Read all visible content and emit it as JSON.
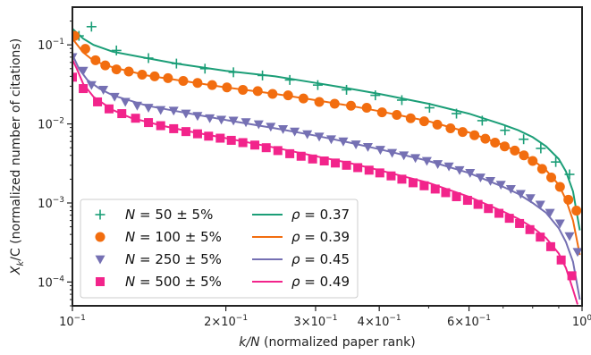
{
  "chart_data": {
    "type": "scatter",
    "title": "",
    "xlabel_var": "k/N",
    "xlabel_text": " (normalized paper rank)",
    "ylabel_var": "X_k/C",
    "ylabel_text": " (normalized number of citations)",
    "x_scale": "log",
    "y_scale": "log",
    "xlim": [
      0.1,
      1.0
    ],
    "ylim": [
      5e-05,
      0.3
    ],
    "grid": false,
    "legend_position": "lower-left",
    "x_ticks": [
      {
        "value": 0.1,
        "mant": "",
        "exp": "10",
        "sup": "−1"
      },
      {
        "value": 0.2,
        "mant": "2×",
        "exp": "10",
        "sup": "−1"
      },
      {
        "value": 0.3,
        "mant": "3×",
        "exp": "10",
        "sup": "−1"
      },
      {
        "value": 0.4,
        "mant": "4×",
        "exp": "10",
        "sup": "−1"
      },
      {
        "value": 0.6,
        "mant": "6×",
        "exp": "10",
        "sup": "−1"
      },
      {
        "value": 1.0,
        "mant": "",
        "exp": "10",
        "sup": "0"
      }
    ],
    "y_ticks": [
      {
        "value": 0.1,
        "exp": "10",
        "sup": "−1"
      },
      {
        "value": 0.01,
        "exp": "10",
        "sup": "−2"
      },
      {
        "value": 0.001,
        "exp": "10",
        "sup": "−3"
      },
      {
        "value": 0.0001,
        "exp": "10",
        "sup": "−4"
      }
    ],
    "scatter_series": [
      {
        "label_var": "N",
        "label_value": " = 50 ± 5%",
        "marker": "plus",
        "color": "#1b9e77",
        "points": [
          [
            0.103,
            0.13
          ],
          [
            0.109,
            0.17
          ],
          [
            0.122,
            0.085
          ],
          [
            0.141,
            0.068
          ],
          [
            0.16,
            0.058
          ],
          [
            0.182,
            0.05
          ],
          [
            0.207,
            0.045
          ],
          [
            0.236,
            0.041
          ],
          [
            0.267,
            0.036
          ],
          [
            0.303,
            0.031
          ],
          [
            0.345,
            0.027
          ],
          [
            0.393,
            0.023
          ],
          [
            0.443,
            0.02
          ],
          [
            0.502,
            0.016
          ],
          [
            0.567,
            0.0135
          ],
          [
            0.637,
            0.011
          ],
          [
            0.706,
            0.0083
          ],
          [
            0.768,
            0.0064
          ],
          [
            0.83,
            0.0049
          ],
          [
            0.888,
            0.0033
          ],
          [
            0.945,
            0.0023
          ]
        ]
      },
      {
        "label_var": "N",
        "label_value": " = 100 ± 5%",
        "marker": "circle",
        "color": "#f26d0f",
        "points": [
          [
            0.101,
            0.13
          ],
          [
            0.106,
            0.089
          ],
          [
            0.111,
            0.064
          ],
          [
            0.116,
            0.055
          ],
          [
            0.122,
            0.049
          ],
          [
            0.129,
            0.046
          ],
          [
            0.137,
            0.042
          ],
          [
            0.145,
            0.04
          ],
          [
            0.154,
            0.038
          ],
          [
            0.165,
            0.035
          ],
          [
            0.176,
            0.033
          ],
          [
            0.188,
            0.031
          ],
          [
            0.201,
            0.029
          ],
          [
            0.216,
            0.027
          ],
          [
            0.231,
            0.026
          ],
          [
            0.247,
            0.024
          ],
          [
            0.265,
            0.023
          ],
          [
            0.284,
            0.021
          ],
          [
            0.305,
            0.019
          ],
          [
            0.327,
            0.018
          ],
          [
            0.352,
            0.017
          ],
          [
            0.378,
            0.016
          ],
          [
            0.405,
            0.014
          ],
          [
            0.433,
            0.013
          ],
          [
            0.461,
            0.0118
          ],
          [
            0.49,
            0.0108
          ],
          [
            0.52,
            0.0098
          ],
          [
            0.552,
            0.0088
          ],
          [
            0.583,
            0.0079
          ],
          [
            0.615,
            0.0072
          ],
          [
            0.646,
            0.0065
          ],
          [
            0.675,
            0.0058
          ],
          [
            0.705,
            0.0052
          ],
          [
            0.738,
            0.0046
          ],
          [
            0.769,
            0.004
          ],
          [
            0.8,
            0.0034
          ],
          [
            0.835,
            0.0027
          ],
          [
            0.87,
            0.0021
          ],
          [
            0.905,
            0.0016
          ],
          [
            0.94,
            0.0011
          ],
          [
            0.975,
            0.0008
          ]
        ]
      },
      {
        "label_var": "N",
        "label_value": " = 250 ± 5%",
        "marker": "triangle-down",
        "color": "#7570b3",
        "points": [
          [
            0.1,
            0.07
          ],
          [
            0.105,
            0.047
          ],
          [
            0.109,
            0.031
          ],
          [
            0.115,
            0.027
          ],
          [
            0.121,
            0.022
          ],
          [
            0.127,
            0.019
          ],
          [
            0.134,
            0.017
          ],
          [
            0.141,
            0.016
          ],
          [
            0.149,
            0.015
          ],
          [
            0.158,
            0.0147
          ],
          [
            0.167,
            0.0135
          ],
          [
            0.176,
            0.0126
          ],
          [
            0.186,
            0.0118
          ],
          [
            0.196,
            0.0113
          ],
          [
            0.207,
            0.011
          ],
          [
            0.219,
            0.0105
          ],
          [
            0.232,
            0.0099
          ],
          [
            0.245,
            0.0092
          ],
          [
            0.259,
            0.0086
          ],
          [
            0.273,
            0.008
          ],
          [
            0.289,
            0.0074
          ],
          [
            0.305,
            0.0069
          ],
          [
            0.322,
            0.0064
          ],
          [
            0.34,
            0.006
          ],
          [
            0.36,
            0.0055
          ],
          [
            0.38,
            0.0051
          ],
          [
            0.402,
            0.0047
          ],
          [
            0.424,
            0.0043
          ],
          [
            0.447,
            0.004
          ],
          [
            0.471,
            0.0037
          ],
          [
            0.496,
            0.0034
          ],
          [
            0.521,
            0.0031
          ],
          [
            0.548,
            0.0029
          ],
          [
            0.575,
            0.0026
          ],
          [
            0.603,
            0.0024
          ],
          [
            0.632,
            0.0021
          ],
          [
            0.661,
            0.0019
          ],
          [
            0.693,
            0.0017
          ],
          [
            0.725,
            0.0015
          ],
          [
            0.758,
            0.0013
          ],
          [
            0.792,
            0.00115
          ],
          [
            0.828,
            0.00095
          ],
          [
            0.865,
            0.00075
          ],
          [
            0.905,
            0.00055
          ],
          [
            0.945,
            0.00038
          ],
          [
            0.98,
            0.00024
          ]
        ]
      },
      {
        "label_var": "N",
        "label_value": " = 500 ± 5%",
        "marker": "square",
        "color": "#f2248b",
        "points": [
          [
            0.1,
            0.039
          ],
          [
            0.105,
            0.028
          ],
          [
            0.112,
            0.019
          ],
          [
            0.118,
            0.0155
          ],
          [
            0.125,
            0.0135
          ],
          [
            0.133,
            0.0118
          ],
          [
            0.141,
            0.0104
          ],
          [
            0.149,
            0.0095
          ],
          [
            0.158,
            0.0087
          ],
          [
            0.167,
            0.008
          ],
          [
            0.176,
            0.0075
          ],
          [
            0.185,
            0.007
          ],
          [
            0.195,
            0.0066
          ],
          [
            0.205,
            0.0062
          ],
          [
            0.216,
            0.0058
          ],
          [
            0.228,
            0.0054
          ],
          [
            0.24,
            0.005
          ],
          [
            0.253,
            0.0046
          ],
          [
            0.267,
            0.0042
          ],
          [
            0.281,
            0.0039
          ],
          [
            0.296,
            0.0036
          ],
          [
            0.312,
            0.0034
          ],
          [
            0.328,
            0.0032
          ],
          [
            0.345,
            0.003
          ],
          [
            0.363,
            0.0028
          ],
          [
            0.382,
            0.0026
          ],
          [
            0.401,
            0.0024
          ],
          [
            0.422,
            0.0022
          ],
          [
            0.443,
            0.002
          ],
          [
            0.466,
            0.0018
          ],
          [
            0.49,
            0.00165
          ],
          [
            0.515,
            0.0015
          ],
          [
            0.54,
            0.00135
          ],
          [
            0.567,
            0.0012
          ],
          [
            0.596,
            0.00108
          ],
          [
            0.625,
            0.00096
          ],
          [
            0.655,
            0.00085
          ],
          [
            0.687,
            0.00074
          ],
          [
            0.72,
            0.00064
          ],
          [
            0.754,
            0.00055
          ],
          [
            0.79,
            0.00046
          ],
          [
            0.828,
            0.00037
          ],
          [
            0.868,
            0.00028
          ],
          [
            0.91,
            0.00019
          ],
          [
            0.955,
            0.00012
          ]
        ]
      }
    ],
    "fit_series": [
      {
        "label_var": "ρ",
        "label_value": " = 0.37",
        "color": "#1b9e77",
        "points": [
          [
            0.1,
            0.16
          ],
          [
            0.105,
            0.12
          ],
          [
            0.11,
            0.1
          ],
          [
            0.12,
            0.082
          ],
          [
            0.14,
            0.068
          ],
          [
            0.16,
            0.058
          ],
          [
            0.2,
            0.047
          ],
          [
            0.25,
            0.04
          ],
          [
            0.3,
            0.033
          ],
          [
            0.35,
            0.028
          ],
          [
            0.4,
            0.024
          ],
          [
            0.5,
            0.018
          ],
          [
            0.6,
            0.0135
          ],
          [
            0.7,
            0.0098
          ],
          [
            0.75,
            0.0083
          ],
          [
            0.8,
            0.0068
          ],
          [
            0.85,
            0.0052
          ],
          [
            0.9,
            0.0036
          ],
          [
            0.93,
            0.0025
          ],
          [
            0.96,
            0.0014
          ],
          [
            0.99,
            0.00045
          ]
        ]
      },
      {
        "label_var": "ρ",
        "label_value": " = 0.39",
        "color": "#f26d0f",
        "points": [
          [
            0.1,
            0.12
          ],
          [
            0.105,
            0.08
          ],
          [
            0.11,
            0.063
          ],
          [
            0.12,
            0.052
          ],
          [
            0.14,
            0.041
          ],
          [
            0.16,
            0.036
          ],
          [
            0.2,
            0.029
          ],
          [
            0.25,
            0.024
          ],
          [
            0.3,
            0.02
          ],
          [
            0.35,
            0.017
          ],
          [
            0.4,
            0.0145
          ],
          [
            0.5,
            0.0108
          ],
          [
            0.6,
            0.0078
          ],
          [
            0.7,
            0.0054
          ],
          [
            0.75,
            0.0044
          ],
          [
            0.8,
            0.0035
          ],
          [
            0.85,
            0.0026
          ],
          [
            0.9,
            0.0017
          ],
          [
            0.93,
            0.0011
          ],
          [
            0.96,
            0.0006
          ],
          [
            0.99,
            0.00022
          ]
        ]
      },
      {
        "label_var": "ρ",
        "label_value": " = 0.45",
        "color": "#7570b3",
        "points": [
          [
            0.1,
            0.075
          ],
          [
            0.103,
            0.05
          ],
          [
            0.107,
            0.036
          ],
          [
            0.113,
            0.028
          ],
          [
            0.12,
            0.023
          ],
          [
            0.14,
            0.017
          ],
          [
            0.16,
            0.0145
          ],
          [
            0.2,
            0.0112
          ],
          [
            0.25,
            0.0088
          ],
          [
            0.3,
            0.0071
          ],
          [
            0.35,
            0.0058
          ],
          [
            0.4,
            0.0048
          ],
          [
            0.5,
            0.0034
          ],
          [
            0.6,
            0.0024
          ],
          [
            0.7,
            0.0016
          ],
          [
            0.75,
            0.0013
          ],
          [
            0.8,
            0.001
          ],
          [
            0.85,
            0.00075
          ],
          [
            0.9,
            0.00048
          ],
          [
            0.93,
            0.00032
          ],
          [
            0.96,
            0.00018
          ],
          [
            0.99,
            6e-05
          ]
        ]
      },
      {
        "label_var": "ρ",
        "label_value": " = 0.49",
        "color": "#f2248b",
        "points": [
          [
            0.1,
            0.065
          ],
          [
            0.102,
            0.05
          ],
          [
            0.105,
            0.032
          ],
          [
            0.11,
            0.022
          ],
          [
            0.12,
            0.015
          ],
          [
            0.13,
            0.012
          ],
          [
            0.15,
            0.0095
          ],
          [
            0.17,
            0.008
          ],
          [
            0.2,
            0.0066
          ],
          [
            0.25,
            0.005
          ],
          [
            0.3,
            0.0039
          ],
          [
            0.35,
            0.0032
          ],
          [
            0.4,
            0.0026
          ],
          [
            0.5,
            0.0018
          ],
          [
            0.6,
            0.0012
          ],
          [
            0.7,
            0.00078
          ],
          [
            0.75,
            0.00063
          ],
          [
            0.8,
            0.00049
          ],
          [
            0.85,
            0.00036
          ],
          [
            0.9,
            0.00023
          ],
          [
            0.93,
            0.00015
          ],
          [
            0.96,
            8e-05
          ],
          [
            0.98,
            5.2e-05
          ]
        ]
      }
    ]
  }
}
